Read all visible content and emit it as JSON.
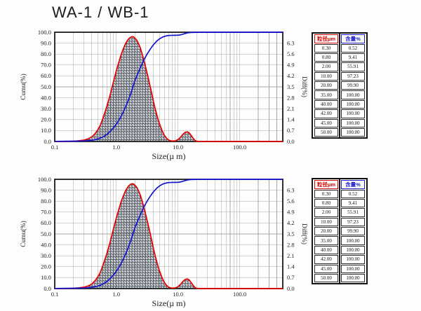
{
  "title": "WA-1 / WB-1",
  "colors": {
    "diff_curve": "#e60000",
    "cumu_curve": "#1414d2",
    "grid": "#a6a6a6",
    "frame": "#1a1a1a",
    "hatch": "#242c3a",
    "table_header_size": "#d40000",
    "table_header_content": "#1717cf",
    "tick_text": "#1f1f1f"
  },
  "tables": [
    {
      "headers": {
        "size": "粒径µm",
        "content": "含量%"
      },
      "rows": [
        [
          "0.30",
          "0.52"
        ],
        [
          "0.80",
          "9.41"
        ],
        [
          "2.00",
          "55.91"
        ],
        [
          "10.00",
          "97.23"
        ],
        [
          "20.00",
          "99.90"
        ],
        [
          "35.00",
          "100.00"
        ],
        [
          "40.00",
          "100.00"
        ],
        [
          "42.00",
          "100.00"
        ],
        [
          "45.00",
          "100.00"
        ],
        [
          "50.00",
          "100.00"
        ]
      ]
    },
    {
      "headers": {
        "size": "粒径µm",
        "content": "含量%"
      },
      "rows": [
        [
          "0.30",
          "0.52"
        ],
        [
          "0.80",
          "9.41"
        ],
        [
          "2.00",
          "55.91"
        ],
        [
          "10.00",
          "97.23"
        ],
        [
          "20.00",
          "99.90"
        ],
        [
          "35.00",
          "100.00"
        ],
        [
          "40.00",
          "100.00"
        ],
        [
          "42.00",
          "100.00"
        ],
        [
          "45.00",
          "100.00"
        ],
        [
          "50.00",
          "100.00"
        ]
      ]
    }
  ],
  "chart_data": [
    {
      "type": "line",
      "title": "",
      "xlabel": "Size(µ m)",
      "ylabel_left": "Cumu(%)",
      "ylabel_right": "Diff(%)",
      "x_scale": "log",
      "xlim": [
        0.1,
        500
      ],
      "ylim_left": [
        0,
        100
      ],
      "ylim_right": [
        0,
        7
      ],
      "grid": true,
      "legend": "none",
      "x_tick_values": [
        0.1,
        1,
        10,
        100
      ],
      "x_tick_labels": [
        "0.1",
        "1.0",
        "10.0",
        "100.0"
      ],
      "left_tick_values": [
        0,
        10,
        20,
        30,
        40,
        50,
        60,
        70,
        80,
        90,
        100
      ],
      "left_tick_labels": [
        "0.0",
        "10.0",
        "20.0",
        "30.0",
        "40.0",
        "50.0",
        "60.0",
        "70.0",
        "80.0",
        "90.0",
        "100.0"
      ],
      "right_tick_values": [
        0,
        0.7,
        1.4,
        2.1,
        2.8,
        3.5,
        4.2,
        4.9,
        5.6,
        6.3
      ],
      "right_tick_labels": [
        "0.0",
        "0.7",
        "1.4",
        "2.1",
        "2.8",
        "3.5",
        "4.2",
        "4.9",
        "5.6",
        "6.3"
      ],
      "series": [
        {
          "name": "Diff(%)",
          "axis": "right",
          "style": "filled-hatch",
          "points": [
            [
              0.1,
              0
            ],
            [
              0.15,
              0
            ],
            [
              0.2,
              0.02
            ],
            [
              0.25,
              0.05
            ],
            [
              0.3,
              0.09
            ],
            [
              0.35,
              0.17
            ],
            [
              0.4,
              0.3
            ],
            [
              0.45,
              0.5
            ],
            [
              0.5,
              0.75
            ],
            [
              0.55,
              1.05
            ],
            [
              0.6,
              1.45
            ],
            [
              0.65,
              1.85
            ],
            [
              0.7,
              2.25
            ],
            [
              0.75,
              2.65
            ],
            [
              0.8,
              3.05
            ],
            [
              0.9,
              3.85
            ],
            [
              1,
              4.55
            ],
            [
              1.1,
              5.1
            ],
            [
              1.2,
              5.6
            ],
            [
              1.3,
              5.95
            ],
            [
              1.4,
              6.25
            ],
            [
              1.5,
              6.45
            ],
            [
              1.6,
              6.6
            ],
            [
              1.7,
              6.68
            ],
            [
              1.8,
              6.72
            ],
            [
              1.9,
              6.7
            ],
            [
              2,
              6.62
            ],
            [
              2.15,
              6.48
            ],
            [
              2.3,
              6.25
            ],
            [
              2.45,
              5.98
            ],
            [
              2.6,
              5.65
            ],
            [
              2.8,
              5.2
            ],
            [
              3,
              4.72
            ],
            [
              3.25,
              4.15
            ],
            [
              3.5,
              3.6
            ],
            [
              3.75,
              3.08
            ],
            [
              4,
              2.55
            ],
            [
              4.25,
              2.12
            ],
            [
              4.5,
              1.75
            ],
            [
              4.75,
              1.42
            ],
            [
              5,
              1.14
            ],
            [
              5.5,
              0.7
            ],
            [
              6,
              0.4
            ],
            [
              6.5,
              0.21
            ],
            [
              7,
              0.1
            ],
            [
              7.5,
              0.05
            ],
            [
              8,
              0.03
            ],
            [
              9,
              0.04
            ],
            [
              10,
              0.12
            ],
            [
              11,
              0.28
            ],
            [
              12,
              0.46
            ],
            [
              13,
              0.58
            ],
            [
              14,
              0.62
            ],
            [
              15,
              0.57
            ],
            [
              16,
              0.44
            ],
            [
              17,
              0.29
            ],
            [
              18,
              0.15
            ],
            [
              19,
              0.06
            ],
            [
              20,
              0.02
            ],
            [
              21,
              0
            ],
            [
              500,
              0
            ]
          ]
        },
        {
          "name": "Cumu(%)",
          "axis": "left",
          "style": "line",
          "points": [
            [
              0.1,
              0.1
            ],
            [
              0.2,
              0.3
            ],
            [
              0.3,
              0.52
            ],
            [
              0.4,
              1.1
            ],
            [
              0.5,
              2.3
            ],
            [
              0.6,
              4
            ],
            [
              0.7,
              6.4
            ],
            [
              0.8,
              9.41
            ],
            [
              0.9,
              12.6
            ],
            [
              1,
              15.9
            ],
            [
              1.1,
              19.5
            ],
            [
              1.2,
              23.3
            ],
            [
              1.3,
              27.2
            ],
            [
              1.4,
              31.2
            ],
            [
              1.5,
              35.2
            ],
            [
              1.6,
              39.3
            ],
            [
              1.7,
              43.4
            ],
            [
              1.8,
              47.6
            ],
            [
              1.9,
              51.8
            ],
            [
              2,
              55.91
            ],
            [
              2.15,
              60.1
            ],
            [
              2.3,
              64
            ],
            [
              2.45,
              67.6
            ],
            [
              2.6,
              70.9
            ],
            [
              2.8,
              74.7
            ],
            [
              3,
              77.9
            ],
            [
              3.25,
              81.2
            ],
            [
              3.5,
              84
            ],
            [
              3.75,
              86.5
            ],
            [
              4,
              88.6
            ],
            [
              4.5,
              91.8
            ],
            [
              5,
              93.9
            ],
            [
              5.5,
              95.3
            ],
            [
              6,
              96.2
            ],
            [
              6.5,
              96.7
            ],
            [
              7,
              97
            ],
            [
              8,
              97.15
            ],
            [
              9,
              97.2
            ],
            [
              10,
              97.23
            ],
            [
              11,
              97.6
            ],
            [
              12,
              98.2
            ],
            [
              13,
              98.8
            ],
            [
              14,
              99.3
            ],
            [
              15,
              99.6
            ],
            [
              16,
              99.75
            ],
            [
              17,
              99.82
            ],
            [
              18,
              99.86
            ],
            [
              20,
              99.9
            ],
            [
              22,
              99.97
            ],
            [
              25,
              100
            ],
            [
              500,
              100
            ]
          ]
        }
      ]
    },
    {
      "type": "line",
      "title": "",
      "xlabel": "Size(µ m)",
      "ylabel_left": "Cumu(%)",
      "ylabel_right": "Diff(%)",
      "x_scale": "log",
      "xlim": [
        0.1,
        500
      ],
      "ylim_left": [
        0,
        100
      ],
      "ylim_right": [
        0,
        7
      ],
      "grid": true,
      "legend": "none",
      "x_tick_values": [
        0.1,
        1,
        10,
        100
      ],
      "x_tick_labels": [
        "0.1",
        "1.0",
        "10.0",
        "100.0"
      ],
      "left_tick_values": [
        0,
        10,
        20,
        30,
        40,
        50,
        60,
        70,
        80,
        90,
        100
      ],
      "left_tick_labels": [
        "0.0",
        "10.0",
        "20.0",
        "30.0",
        "40.0",
        "50.0",
        "60.0",
        "70.0",
        "80.0",
        "90.0",
        "100.0"
      ],
      "right_tick_values": [
        0,
        0.7,
        1.4,
        2.1,
        2.8,
        3.5,
        4.2,
        4.9,
        5.6,
        6.3
      ],
      "right_tick_labels": [
        "0.0",
        "0.7",
        "1.4",
        "2.1",
        "2.8",
        "3.5",
        "4.2",
        "4.9",
        "5.6",
        "6.3"
      ],
      "series": [
        {
          "name": "Diff(%)",
          "axis": "right",
          "style": "filled-hatch",
          "points": [
            [
              0.1,
              0
            ],
            [
              0.15,
              0
            ],
            [
              0.2,
              0.02
            ],
            [
              0.25,
              0.05
            ],
            [
              0.3,
              0.09
            ],
            [
              0.35,
              0.17
            ],
            [
              0.4,
              0.3
            ],
            [
              0.45,
              0.5
            ],
            [
              0.5,
              0.75
            ],
            [
              0.55,
              1.05
            ],
            [
              0.6,
              1.45
            ],
            [
              0.65,
              1.85
            ],
            [
              0.7,
              2.25
            ],
            [
              0.75,
              2.65
            ],
            [
              0.8,
              3.05
            ],
            [
              0.9,
              3.85
            ],
            [
              1,
              4.55
            ],
            [
              1.1,
              5.1
            ],
            [
              1.2,
              5.6
            ],
            [
              1.3,
              5.95
            ],
            [
              1.4,
              6.25
            ],
            [
              1.5,
              6.45
            ],
            [
              1.6,
              6.6
            ],
            [
              1.7,
              6.68
            ],
            [
              1.8,
              6.72
            ],
            [
              1.9,
              6.7
            ],
            [
              2,
              6.62
            ],
            [
              2.15,
              6.48
            ],
            [
              2.3,
              6.25
            ],
            [
              2.45,
              5.98
            ],
            [
              2.6,
              5.65
            ],
            [
              2.8,
              5.2
            ],
            [
              3,
              4.72
            ],
            [
              3.25,
              4.15
            ],
            [
              3.5,
              3.6
            ],
            [
              3.75,
              3.08
            ],
            [
              4,
              2.55
            ],
            [
              4.25,
              2.12
            ],
            [
              4.5,
              1.75
            ],
            [
              4.75,
              1.42
            ],
            [
              5,
              1.14
            ],
            [
              5.5,
              0.7
            ],
            [
              6,
              0.4
            ],
            [
              6.5,
              0.21
            ],
            [
              7,
              0.1
            ],
            [
              7.5,
              0.05
            ],
            [
              8,
              0.03
            ],
            [
              9,
              0.04
            ],
            [
              10,
              0.12
            ],
            [
              11,
              0.28
            ],
            [
              12,
              0.46
            ],
            [
              13,
              0.58
            ],
            [
              14,
              0.62
            ],
            [
              15,
              0.57
            ],
            [
              16,
              0.44
            ],
            [
              17,
              0.29
            ],
            [
              18,
              0.15
            ],
            [
              19,
              0.06
            ],
            [
              20,
              0.02
            ],
            [
              21,
              0
            ],
            [
              500,
              0
            ]
          ]
        },
        {
          "name": "Cumu(%)",
          "axis": "left",
          "style": "line",
          "points": [
            [
              0.1,
              0.1
            ],
            [
              0.2,
              0.3
            ],
            [
              0.3,
              0.52
            ],
            [
              0.4,
              1.1
            ],
            [
              0.5,
              2.3
            ],
            [
              0.6,
              4
            ],
            [
              0.7,
              6.4
            ],
            [
              0.8,
              9.41
            ],
            [
              0.9,
              12.6
            ],
            [
              1,
              15.9
            ],
            [
              1.1,
              19.5
            ],
            [
              1.2,
              23.3
            ],
            [
              1.3,
              27.2
            ],
            [
              1.4,
              31.2
            ],
            [
              1.5,
              35.2
            ],
            [
              1.6,
              39.3
            ],
            [
              1.7,
              43.4
            ],
            [
              1.8,
              47.6
            ],
            [
              1.9,
              51.8
            ],
            [
              2,
              55.91
            ],
            [
              2.15,
              60.1
            ],
            [
              2.3,
              64
            ],
            [
              2.45,
              67.6
            ],
            [
              2.6,
              70.9
            ],
            [
              2.8,
              74.7
            ],
            [
              3,
              77.9
            ],
            [
              3.25,
              81.2
            ],
            [
              3.5,
              84
            ],
            [
              3.75,
              86.5
            ],
            [
              4,
              88.6
            ],
            [
              4.5,
              91.8
            ],
            [
              5,
              93.9
            ],
            [
              5.5,
              95.3
            ],
            [
              6,
              96.2
            ],
            [
              6.5,
              96.7
            ],
            [
              7,
              97
            ],
            [
              8,
              97.15
            ],
            [
              9,
              97.2
            ],
            [
              10,
              97.23
            ],
            [
              11,
              97.6
            ],
            [
              12,
              98.2
            ],
            [
              13,
              98.8
            ],
            [
              14,
              99.3
            ],
            [
              15,
              99.6
            ],
            [
              16,
              99.75
            ],
            [
              17,
              99.82
            ],
            [
              18,
              99.86
            ],
            [
              20,
              99.9
            ],
            [
              22,
              99.97
            ],
            [
              25,
              100
            ],
            [
              500,
              100
            ]
          ]
        }
      ]
    }
  ]
}
